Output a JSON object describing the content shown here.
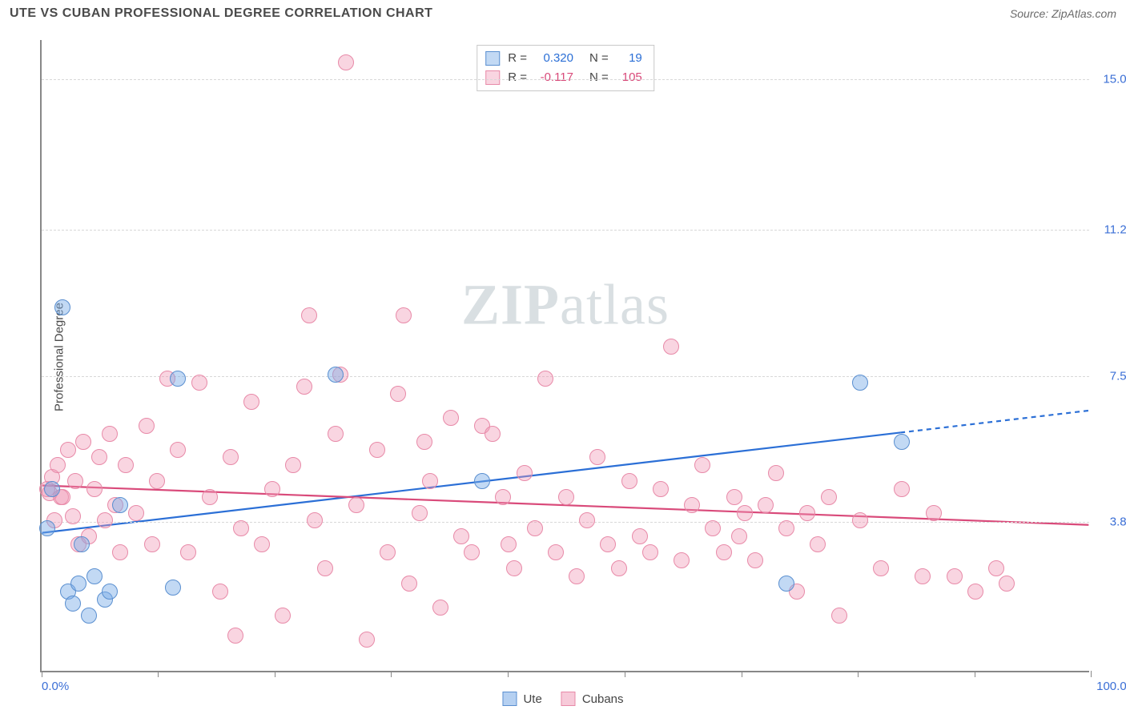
{
  "header": {
    "title": "UTE VS CUBAN PROFESSIONAL DEGREE CORRELATION CHART",
    "source_prefix": "Source: ",
    "source_name": "ZipAtlas.com"
  },
  "chart": {
    "type": "scatter",
    "ylabel": "Professional Degree",
    "xlim": [
      0,
      100
    ],
    "ylim": [
      0,
      16
    ],
    "x_min_label": "0.0%",
    "x_max_label": "100.0%",
    "xtick_positions": [
      0,
      11.1,
      22.2,
      33.3,
      44.4,
      55.6,
      66.7,
      77.8,
      88.9,
      100
    ],
    "y_gridlines": [
      {
        "value": 3.8,
        "label": "3.8%"
      },
      {
        "value": 7.5,
        "label": "7.5%"
      },
      {
        "value": 11.2,
        "label": "11.2%"
      },
      {
        "value": 15.0,
        "label": "15.0%"
      }
    ],
    "background_color": "#ffffff",
    "grid_color": "#d8d8d8",
    "axis_color": "#888888",
    "point_radius": 10,
    "point_border_width": 1.5,
    "series": [
      {
        "name": "Ute",
        "fill_color": "rgba(120,170,230,0.45)",
        "border_color": "#5a8fd0",
        "r_value": "0.320",
        "r_color": "#2b6fd6",
        "n_value": "19",
        "trend": {
          "y_at_x0": 3.5,
          "y_at_x100": 6.6,
          "solid_until_x": 82,
          "color": "#2b6fd6",
          "width": 2.2
        },
        "points": [
          [
            0.5,
            3.6
          ],
          [
            1.0,
            4.6
          ],
          [
            2.0,
            9.2
          ],
          [
            2.5,
            2.0
          ],
          [
            3.0,
            1.7
          ],
          [
            3.5,
            2.2
          ],
          [
            3.8,
            3.2
          ],
          [
            4.5,
            1.4
          ],
          [
            5.0,
            2.4
          ],
          [
            6.0,
            1.8
          ],
          [
            6.5,
            2.0
          ],
          [
            7.5,
            4.2
          ],
          [
            12.5,
            2.1
          ],
          [
            13.0,
            7.4
          ],
          [
            28.0,
            7.5
          ],
          [
            42.0,
            4.8
          ],
          [
            71.0,
            2.2
          ],
          [
            78.0,
            7.3
          ],
          [
            82.0,
            5.8
          ]
        ]
      },
      {
        "name": "Cubans",
        "fill_color": "rgba(240,150,180,0.40)",
        "border_color": "#e88aa8",
        "r_value": "-0.117",
        "r_color": "#d94a7a",
        "n_value": "105",
        "trend": {
          "y_at_x0": 4.7,
          "y_at_x100": 3.7,
          "solid_until_x": 100,
          "color": "#d94a7a",
          "width": 2.2
        },
        "points": [
          [
            0.5,
            4.6
          ],
          [
            0.8,
            4.5
          ],
          [
            1.0,
            4.9
          ],
          [
            1.2,
            3.8
          ],
          [
            1.5,
            5.2
          ],
          [
            1.8,
            4.4
          ],
          [
            2.0,
            4.4
          ],
          [
            2.5,
            5.6
          ],
          [
            3.0,
            3.9
          ],
          [
            3.2,
            4.8
          ],
          [
            3.5,
            3.2
          ],
          [
            4.0,
            5.8
          ],
          [
            4.5,
            3.4
          ],
          [
            5.0,
            4.6
          ],
          [
            5.5,
            5.4
          ],
          [
            6.0,
            3.8
          ],
          [
            6.5,
            6.0
          ],
          [
            7.0,
            4.2
          ],
          [
            7.5,
            3.0
          ],
          [
            8.0,
            5.2
          ],
          [
            9.0,
            4.0
          ],
          [
            10.0,
            6.2
          ],
          [
            10.5,
            3.2
          ],
          [
            11.0,
            4.8
          ],
          [
            12.0,
            7.4
          ],
          [
            13.0,
            5.6
          ],
          [
            14.0,
            3.0
          ],
          [
            15.0,
            7.3
          ],
          [
            16.0,
            4.4
          ],
          [
            17.0,
            2.0
          ],
          [
            18.0,
            5.4
          ],
          [
            18.5,
            0.9
          ],
          [
            19.0,
            3.6
          ],
          [
            20.0,
            6.8
          ],
          [
            21.0,
            3.2
          ],
          [
            22.0,
            4.6
          ],
          [
            23.0,
            1.4
          ],
          [
            24.0,
            5.2
          ],
          [
            25.0,
            7.2
          ],
          [
            25.5,
            9.0
          ],
          [
            26.0,
            3.8
          ],
          [
            27.0,
            2.6
          ],
          [
            28.0,
            6.0
          ],
          [
            28.5,
            7.5
          ],
          [
            29.0,
            15.4
          ],
          [
            30.0,
            4.2
          ],
          [
            31.0,
            0.8
          ],
          [
            32.0,
            5.6
          ],
          [
            33.0,
            3.0
          ],
          [
            34.0,
            7.0
          ],
          [
            34.5,
            9.0
          ],
          [
            35.0,
            2.2
          ],
          [
            36.0,
            4.0
          ],
          [
            36.5,
            5.8
          ],
          [
            37.0,
            4.8
          ],
          [
            38.0,
            1.6
          ],
          [
            39.0,
            6.4
          ],
          [
            40.0,
            3.4
          ],
          [
            41.0,
            3.0
          ],
          [
            42.0,
            6.2
          ],
          [
            43.0,
            6.0
          ],
          [
            44.0,
            4.4
          ],
          [
            44.5,
            3.2
          ],
          [
            45.0,
            2.6
          ],
          [
            46.0,
            5.0
          ],
          [
            47.0,
            3.6
          ],
          [
            48.0,
            7.4
          ],
          [
            49.0,
            3.0
          ],
          [
            50.0,
            4.4
          ],
          [
            51.0,
            2.4
          ],
          [
            52.0,
            3.8
          ],
          [
            53.0,
            5.4
          ],
          [
            54.0,
            3.2
          ],
          [
            55.0,
            2.6
          ],
          [
            56.0,
            4.8
          ],
          [
            57.0,
            3.4
          ],
          [
            58.0,
            3.0
          ],
          [
            59.0,
            4.6
          ],
          [
            60.0,
            8.2
          ],
          [
            61.0,
            2.8
          ],
          [
            62.0,
            4.2
          ],
          [
            63.0,
            5.2
          ],
          [
            64.0,
            3.6
          ],
          [
            65.0,
            3.0
          ],
          [
            66.0,
            4.4
          ],
          [
            66.5,
            3.4
          ],
          [
            67.0,
            4.0
          ],
          [
            68.0,
            2.8
          ],
          [
            69.0,
            4.2
          ],
          [
            70.0,
            5.0
          ],
          [
            71.0,
            3.6
          ],
          [
            72.0,
            2.0
          ],
          [
            73.0,
            4.0
          ],
          [
            74.0,
            3.2
          ],
          [
            75.0,
            4.4
          ],
          [
            76.0,
            1.4
          ],
          [
            78.0,
            3.8
          ],
          [
            80.0,
            2.6
          ],
          [
            82.0,
            4.6
          ],
          [
            84.0,
            2.4
          ],
          [
            85.0,
            4.0
          ],
          [
            87.0,
            2.4
          ],
          [
            89.0,
            2.0
          ],
          [
            91.0,
            2.6
          ],
          [
            92.0,
            2.2
          ]
        ]
      }
    ]
  },
  "legend_bottom": [
    {
      "label": "Ute",
      "fill": "rgba(120,170,230,0.55)",
      "border": "#5a8fd0"
    },
    {
      "label": "Cubans",
      "fill": "rgba(240,150,180,0.50)",
      "border": "#e88aa8"
    }
  ],
  "watermark": {
    "bold": "ZIP",
    "rest": "atlas"
  }
}
